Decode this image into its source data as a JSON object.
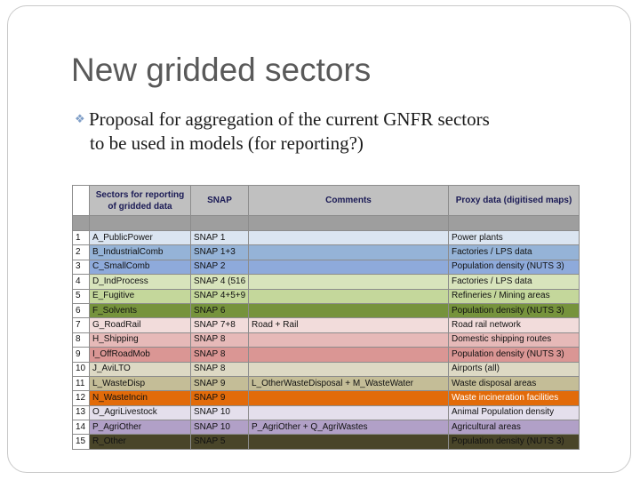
{
  "slide": {
    "title": "New gridded sectors",
    "bullet_line1": "Proposal for aggregation of the current GNFR sectors",
    "bullet_line2": "to be used in models (for reporting?)"
  },
  "table": {
    "headers": [
      "Sectors for reporting of gridded data",
      "SNAP",
      "Comments",
      "Proxy data (digitised maps)"
    ],
    "rows": [
      {
        "num": "1",
        "sector": "A_PublicPower",
        "snap": "SNAP 1",
        "comment": "",
        "proxy": "Power plants",
        "color": "#dbe5f1"
      },
      {
        "num": "2",
        "sector": "B_IndustrialComb",
        "snap": "SNAP 1+3",
        "comment": "",
        "proxy": "Factories / LPS data",
        "color": "#95b3d7"
      },
      {
        "num": "3",
        "sector": "C_SmallComb",
        "snap": "SNAP 2",
        "comment": "",
        "proxy": "Population density (NUTS 3)",
        "color": "#8eaadb"
      },
      {
        "num": "4",
        "sector": "D_IndProcess",
        "snap": "SNAP 4 (516",
        "comment": "",
        "proxy": "Factories / LPS data",
        "color": "#d8e4bc"
      },
      {
        "num": "5",
        "sector": "E_Fugitive",
        "snap": "SNAP 4+5+9",
        "comment": "",
        "proxy": "Refineries / Mining areas",
        "color": "#c4d79b"
      },
      {
        "num": "6",
        "sector": "F_Solvents",
        "snap": "SNAP 6",
        "comment": "",
        "proxy": "Population density (NUTS 3)",
        "color": "#76933c"
      },
      {
        "num": "7",
        "sector": "G_RoadRail",
        "snap": "SNAP 7+8",
        "comment": "Road + Rail",
        "proxy": "Road rail network",
        "color": "#f2dcdb"
      },
      {
        "num": "8",
        "sector": "H_Shipping",
        "snap": "SNAP 8",
        "comment": "",
        "proxy": "Domestic shipping routes",
        "color": "#e6b9b8"
      },
      {
        "num": "9",
        "sector": "I_OffRoadMob",
        "snap": "SNAP 8",
        "comment": "",
        "proxy": "Population density (NUTS 3)",
        "color": "#da9694"
      },
      {
        "num": "10",
        "sector": "J_AviLTO",
        "snap": "SNAP 8",
        "comment": "",
        "proxy": "Airports (all)",
        "color": "#ddd9c4"
      },
      {
        "num": "11",
        "sector": "L_WasteDisp",
        "snap": "SNAP 9",
        "comment": "L_OtherWasteDisposal + M_WasteWater",
        "proxy": "Waste disposal areas",
        "color": "#c4bd97"
      },
      {
        "num": "12",
        "sector": "N_WasteIncin",
        "snap": "SNAP 9",
        "comment": "",
        "proxy": "Waste incineration facilities",
        "color": "#e26b0a"
      },
      {
        "num": "13",
        "sector": "O_AgriLivestock",
        "snap": "SNAP 10",
        "comment": "",
        "proxy": "Animal Population density",
        "color": "#e4dfec"
      },
      {
        "num": "14",
        "sector": "P_AgriOther",
        "snap": "SNAP 10",
        "comment": "P_AgriOther + Q_AgriWastes",
        "proxy": "Agricultural areas",
        "color": "#b1a0c7"
      },
      {
        "num": "15",
        "sector": "R_Other",
        "snap": "SNAP 5",
        "comment": "",
        "proxy": "Population density (NUTS 3)",
        "color": "#494529"
      }
    ]
  }
}
